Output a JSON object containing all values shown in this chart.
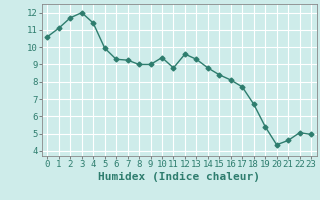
{
  "x": [
    0,
    1,
    2,
    3,
    4,
    5,
    6,
    7,
    8,
    9,
    10,
    11,
    12,
    13,
    14,
    15,
    16,
    17,
    18,
    19,
    20,
    21,
    22,
    23
  ],
  "y": [
    10.6,
    11.1,
    11.7,
    12.0,
    11.4,
    9.95,
    9.3,
    9.25,
    9.0,
    9.0,
    9.4,
    8.8,
    9.6,
    9.3,
    8.8,
    8.4,
    8.1,
    7.7,
    6.7,
    5.4,
    4.35,
    4.6,
    5.05,
    4.95
  ],
  "line_color": "#2e7d6e",
  "marker": "D",
  "marker_size": 2.5,
  "bg_color": "#ceecea",
  "grid_color": "#ffffff",
  "xlabel": "Humidex (Indice chaleur)",
  "xlim": [
    -0.5,
    23.5
  ],
  "ylim": [
    3.7,
    12.5
  ],
  "yticks": [
    4,
    5,
    6,
    7,
    8,
    9,
    10,
    11,
    12
  ],
  "xticks": [
    0,
    1,
    2,
    3,
    4,
    5,
    6,
    7,
    8,
    9,
    10,
    11,
    12,
    13,
    14,
    15,
    16,
    17,
    18,
    19,
    20,
    21,
    22,
    23
  ],
  "tick_label_fontsize": 6.5,
  "xlabel_fontsize": 8,
  "line_width": 1.0
}
